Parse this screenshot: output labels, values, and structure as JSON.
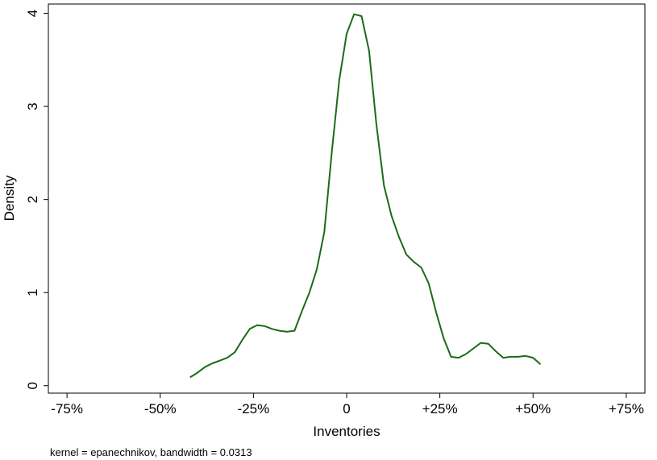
{
  "chart_data": {
    "type": "line",
    "title": "",
    "xlabel": "Inventories",
    "ylabel": "Density",
    "note": "kernel = epanechnikov, bandwidth = 0.0313",
    "xlim": [
      -80,
      80
    ],
    "ylim": [
      -0.08,
      4.1
    ],
    "x_ticks": [
      -75,
      -50,
      -25,
      0,
      25,
      50,
      75
    ],
    "x_tick_labels": [
      "-75%",
      "-50%",
      "-25%",
      "0",
      "+25%",
      "+50%",
      "+75%"
    ],
    "y_ticks": [
      0,
      1,
      2,
      3,
      4
    ],
    "y_tick_labels": [
      "0",
      "1",
      "2",
      "3",
      "4"
    ],
    "grid": false,
    "series": [
      {
        "color": "#1a6b1a",
        "x": [
          -42,
          -40,
          -38,
          -36,
          -34,
          -32,
          -30,
          -28,
          -26,
          -24,
          -22,
          -20,
          -18,
          -16,
          -14,
          -12,
          -10,
          -8,
          -6,
          -4,
          -2,
          0,
          2,
          4,
          6,
          8,
          10,
          12,
          14,
          16,
          18,
          20,
          22,
          24,
          26,
          28,
          30,
          32,
          34,
          36,
          38,
          40,
          42,
          44,
          46,
          48,
          50,
          52
        ],
        "y": [
          0.09,
          0.14,
          0.2,
          0.24,
          0.27,
          0.3,
          0.36,
          0.49,
          0.61,
          0.65,
          0.64,
          0.61,
          0.59,
          0.58,
          0.59,
          0.8,
          1.0,
          1.25,
          1.65,
          2.5,
          3.28,
          3.78,
          3.99,
          3.97,
          3.6,
          2.8,
          2.15,
          1.83,
          1.6,
          1.41,
          1.33,
          1.27,
          1.1,
          0.79,
          0.51,
          0.31,
          0.3,
          0.34,
          0.4,
          0.46,
          0.45,
          0.37,
          0.3,
          0.31,
          0.31,
          0.32,
          0.3,
          0.23
        ]
      }
    ]
  }
}
